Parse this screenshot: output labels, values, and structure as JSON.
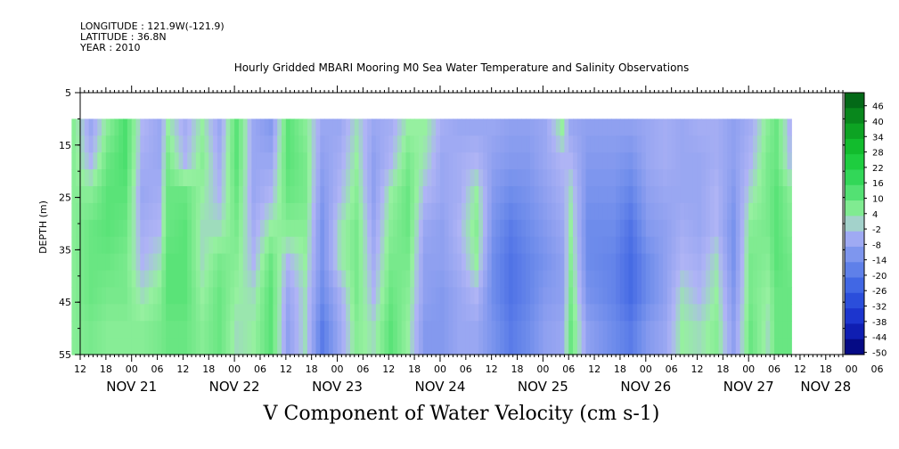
{
  "header": {
    "longitude": "LONGITUDE : 121.9W(-121.9)",
    "latitude": "LATITUDE : 36.8N",
    "year": "YEAR : 2010"
  },
  "chart_data": {
    "type": "heatmap",
    "title": "Hourly Gridded MBARI Mooring M0 Sea Water Temperature and Salinity Observations",
    "xlabel": "V Component of Water Velocity (cm s-1)",
    "ylabel": "DEPTH (m)",
    "ylim": [
      5,
      55
    ],
    "y_axis_inverted": true,
    "y_ticks": [
      5,
      15,
      25,
      35,
      45,
      55
    ],
    "x_hour_ticks": [
      "12",
      "18",
      "00",
      "06",
      "12",
      "18",
      "00",
      "06",
      "12",
      "18",
      "00",
      "06",
      "12",
      "18",
      "00",
      "06",
      "12",
      "18",
      "00",
      "06",
      "12",
      "18",
      "00",
      "06",
      "12",
      "18",
      "00",
      "06",
      "12",
      "18",
      "00",
      "06"
    ],
    "x_day_labels": [
      "NOV 21",
      "NOV 22",
      "NOV 23",
      "NOV 24",
      "NOV 25",
      "NOV 26",
      "NOV 27",
      "NOV 28"
    ],
    "colorbar_labels": [
      "46",
      "40",
      "34",
      "28",
      "22",
      "16",
      "10",
      "4",
      "-2",
      "-8",
      "-14",
      "-20",
      "-26",
      "-32",
      "-38",
      "-44",
      "-50"
    ],
    "colorbar_range": [
      -50,
      52
    ],
    "data_depth_range": [
      10,
      55
    ],
    "data_time_range_hours_from_nov21_00": [
      10,
      178
    ],
    "column_profiles": [
      {
        "h": 10,
        "v": [
          6,
          6,
          6,
          6,
          6,
          6,
          6
        ]
      },
      {
        "h": 14,
        "v": [
          -6,
          -2,
          6,
          10,
          10,
          10,
          8
        ]
      },
      {
        "h": 18,
        "v": [
          6,
          10,
          12,
          12,
          10,
          8,
          6
        ]
      },
      {
        "h": 22,
        "v": [
          14,
          14,
          12,
          10,
          8,
          8,
          6
        ]
      },
      {
        "h": 26,
        "v": [
          -2,
          -4,
          -6,
          -4,
          -2,
          2,
          6
        ]
      },
      {
        "h": 30,
        "v": [
          -6,
          -6,
          -4,
          -2,
          2,
          6,
          8
        ]
      },
      {
        "h": 32,
        "v": [
          4,
          8,
          10,
          10,
          12,
          12,
          10
        ]
      },
      {
        "h": 36,
        "v": [
          -4,
          -2,
          10,
          12,
          12,
          12,
          10
        ]
      },
      {
        "h": 40,
        "v": [
          4,
          6,
          4,
          2,
          2,
          4,
          6
        ]
      },
      {
        "h": 44,
        "v": [
          -6,
          -4,
          -2,
          2,
          8,
          10,
          10
        ]
      },
      {
        "h": 48,
        "v": [
          12,
          12,
          10,
          8,
          6,
          4,
          2
        ]
      },
      {
        "h": 52,
        "v": [
          -6,
          -6,
          -6,
          -4,
          -2,
          2,
          4
        ]
      },
      {
        "h": 56,
        "v": [
          -10,
          -6,
          -2,
          4,
          10,
          12,
          12
        ]
      },
      {
        "h": 60,
        "v": [
          12,
          12,
          10,
          6,
          -2,
          -6,
          -8
        ]
      },
      {
        "h": 64,
        "v": [
          6,
          8,
          8,
          6,
          4,
          2,
          2
        ]
      },
      {
        "h": 68,
        "v": [
          -6,
          -8,
          -10,
          -12,
          -12,
          -14,
          -18
        ]
      },
      {
        "h": 72,
        "v": [
          -6,
          -4,
          -2,
          2,
          2,
          -4,
          -6
        ]
      },
      {
        "h": 76,
        "v": [
          2,
          4,
          6,
          8,
          8,
          8,
          6
        ]
      },
      {
        "h": 80,
        "v": [
          -6,
          -8,
          -8,
          -6,
          -4,
          -2,
          2
        ]
      },
      {
        "h": 84,
        "v": [
          -4,
          -2,
          4,
          6,
          8,
          10,
          12
        ]
      },
      {
        "h": 88,
        "v": [
          4,
          8,
          10,
          10,
          8,
          6,
          4
        ]
      },
      {
        "h": 92,
        "v": [
          4,
          2,
          -2,
          -6,
          -8,
          -8,
          -10
        ]
      },
      {
        "h": 96,
        "v": [
          -4,
          -6,
          -6,
          -8,
          -8,
          -10,
          -10
        ]
      },
      {
        "h": 100,
        "v": [
          -6,
          -4,
          -4,
          -2,
          -4,
          -6,
          -6
        ]
      },
      {
        "h": 104,
        "v": [
          -6,
          -2,
          4,
          6,
          4,
          -2,
          -6
        ]
      },
      {
        "h": 108,
        "v": [
          -6,
          -8,
          -10,
          -12,
          -14,
          -14,
          -12
        ]
      },
      {
        "h": 112,
        "v": [
          -8,
          -10,
          -14,
          -18,
          -20,
          -20,
          -18
        ]
      },
      {
        "h": 116,
        "v": [
          -8,
          -10,
          -12,
          -14,
          -16,
          -16,
          -14
        ]
      },
      {
        "h": 120,
        "v": [
          -6,
          -6,
          -8,
          -10,
          -12,
          -10,
          -8
        ]
      },
      {
        "h": 124,
        "v": [
          4,
          -2,
          -4,
          -6,
          -8,
          -8,
          -6
        ]
      },
      {
        "h": 126,
        "v": [
          -6,
          -2,
          2,
          4,
          6,
          8,
          10
        ]
      },
      {
        "h": 130,
        "v": [
          -8,
          -10,
          -12,
          -14,
          -14,
          -12,
          -8
        ]
      },
      {
        "h": 136,
        "v": [
          -8,
          -10,
          -12,
          -14,
          -16,
          -16,
          -14
        ]
      },
      {
        "h": 140,
        "v": [
          -8,
          -12,
          -16,
          -20,
          -22,
          -22,
          -18
        ]
      },
      {
        "h": 144,
        "v": [
          -6,
          -6,
          -8,
          -10,
          -14,
          -14,
          -10
        ]
      },
      {
        "h": 148,
        "v": [
          -4,
          -4,
          -6,
          -8,
          -8,
          -8,
          -6
        ]
      },
      {
        "h": 152,
        "v": [
          -6,
          -6,
          -6,
          -4,
          -2,
          2,
          4
        ]
      },
      {
        "h": 156,
        "v": [
          -4,
          -6,
          -6,
          -6,
          -4,
          -2,
          2
        ]
      },
      {
        "h": 160,
        "v": [
          -4,
          -4,
          -2,
          -2,
          2,
          4,
          6
        ]
      },
      {
        "h": 164,
        "v": [
          -8,
          -8,
          -10,
          -12,
          -12,
          -10,
          -8
        ]
      },
      {
        "h": 168,
        "v": [
          -4,
          -2,
          2,
          6,
          8,
          8,
          10
        ]
      },
      {
        "h": 172,
        "v": [
          6,
          8,
          8,
          8,
          6,
          4,
          2
        ]
      },
      {
        "h": 174,
        "v": [
          10,
          10,
          12,
          12,
          12,
          10,
          10
        ]
      },
      {
        "h": 178,
        "v": [
          -6,
          -4,
          4,
          6,
          8,
          10,
          10
        ]
      }
    ]
  }
}
